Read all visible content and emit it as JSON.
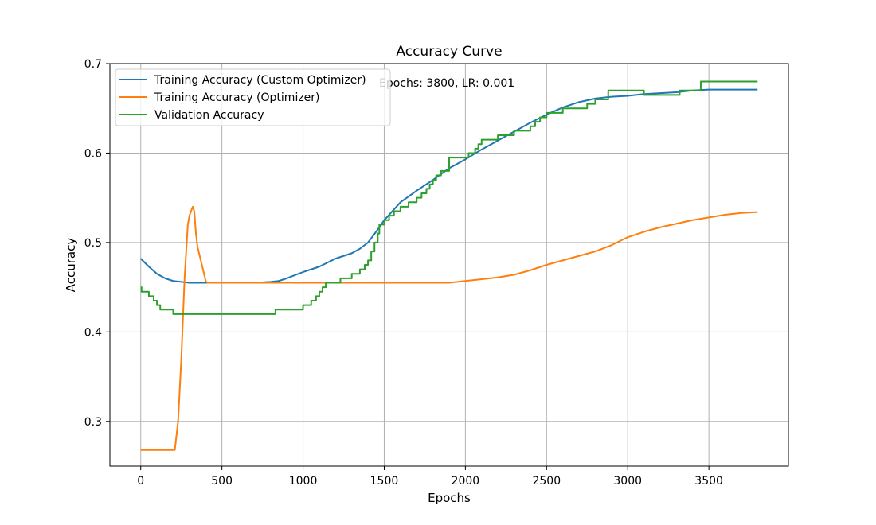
{
  "chart_data": {
    "type": "line",
    "title": "Accuracy Curve",
    "xlabel": "Epochs",
    "ylabel": "Accuracy",
    "xlim": [
      -190,
      3990
    ],
    "ylim": [
      0.25,
      0.7
    ],
    "xticks": [
      0,
      500,
      1000,
      1500,
      2000,
      2500,
      3000,
      3500
    ],
    "yticks": [
      0.3,
      0.4,
      0.5,
      0.6,
      0.7
    ],
    "grid": true,
    "legend_position": "top-left",
    "annotation": "Epochs: 3800, LR: 0.001",
    "series": [
      {
        "name": "Training Accuracy (Custom Optimizer)",
        "color": "#1f77b4",
        "interpolation": "linear",
        "x": [
          0,
          50,
          100,
          150,
          200,
          250,
          300,
          400,
          500,
          600,
          700,
          800,
          850,
          900,
          1000,
          1100,
          1200,
          1300,
          1350,
          1400,
          1450,
          1500,
          1600,
          1700,
          1800,
          1900,
          2000,
          2100,
          2200,
          2300,
          2400,
          2500,
          2600,
          2700,
          2800,
          2900,
          3000,
          3100,
          3200,
          3300,
          3400,
          3500,
          3600,
          3700,
          3800
        ],
        "y": [
          0.482,
          0.473,
          0.465,
          0.46,
          0.457,
          0.456,
          0.455,
          0.455,
          0.455,
          0.455,
          0.455,
          0.456,
          0.457,
          0.46,
          0.467,
          0.473,
          0.482,
          0.488,
          0.493,
          0.5,
          0.512,
          0.525,
          0.545,
          0.558,
          0.57,
          0.583,
          0.593,
          0.604,
          0.614,
          0.624,
          0.634,
          0.643,
          0.651,
          0.657,
          0.661,
          0.663,
          0.664,
          0.666,
          0.667,
          0.668,
          0.67,
          0.671,
          0.671,
          0.671,
          0.671
        ]
      },
      {
        "name": "Training Accuracy (Optimizer)",
        "color": "#ff7f0e",
        "interpolation": "linear",
        "x": [
          0,
          100,
          200,
          210,
          230,
          250,
          270,
          290,
          300,
          310,
          320,
          330,
          340,
          350,
          370,
          390,
          400,
          410,
          500,
          700,
          1000,
          1500,
          1900,
          2000,
          2100,
          2200,
          2300,
          2400,
          2500,
          2600,
          2700,
          2800,
          2900,
          3000,
          3100,
          3200,
          3300,
          3400,
          3500,
          3600,
          3700,
          3800
        ],
        "y": [
          0.268,
          0.268,
          0.268,
          0.268,
          0.3,
          0.37,
          0.46,
          0.52,
          0.53,
          0.535,
          0.54,
          0.535,
          0.51,
          0.495,
          0.48,
          0.465,
          0.457,
          0.455,
          0.455,
          0.455,
          0.455,
          0.455,
          0.455,
          0.457,
          0.459,
          0.461,
          0.464,
          0.469,
          0.475,
          0.48,
          0.485,
          0.49,
          0.497,
          0.506,
          0.512,
          0.517,
          0.521,
          0.525,
          0.528,
          0.531,
          0.533,
          0.534
        ]
      },
      {
        "name": "Validation Accuracy",
        "color": "#2ca02c",
        "interpolation": "step-post",
        "x": [
          0,
          5,
          50,
          80,
          100,
          120,
          200,
          500,
          800,
          830,
          900,
          1000,
          1050,
          1080,
          1100,
          1120,
          1140,
          1200,
          1230,
          1300,
          1350,
          1380,
          1400,
          1420,
          1440,
          1460,
          1470,
          1500,
          1530,
          1560,
          1600,
          1650,
          1700,
          1730,
          1760,
          1780,
          1800,
          1820,
          1850,
          1900,
          2000,
          2020,
          2060,
          2080,
          2100,
          2200,
          2300,
          2400,
          2430,
          2460,
          2500,
          2550,
          2600,
          2750,
          2800,
          2880,
          3000,
          3100,
          3200,
          3320,
          3450,
          3800
        ],
        "y": [
          0.45,
          0.445,
          0.44,
          0.435,
          0.43,
          0.425,
          0.42,
          0.42,
          0.42,
          0.425,
          0.425,
          0.43,
          0.435,
          0.44,
          0.445,
          0.45,
          0.455,
          0.455,
          0.46,
          0.465,
          0.47,
          0.475,
          0.48,
          0.49,
          0.5,
          0.51,
          0.52,
          0.525,
          0.53,
          0.535,
          0.54,
          0.545,
          0.55,
          0.555,
          0.56,
          0.565,
          0.57,
          0.575,
          0.58,
          0.595,
          0.595,
          0.6,
          0.605,
          0.61,
          0.615,
          0.62,
          0.625,
          0.63,
          0.635,
          0.64,
          0.645,
          0.645,
          0.65,
          0.655,
          0.66,
          0.67,
          0.67,
          0.665,
          0.665,
          0.67,
          0.68,
          0.68
        ]
      }
    ]
  }
}
